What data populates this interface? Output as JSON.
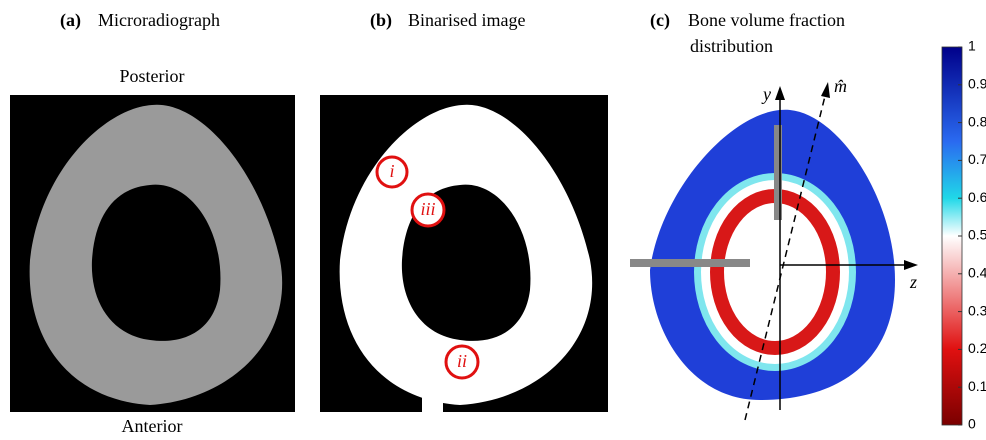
{
  "panels": [
    {
      "tag": "(a)",
      "title": "Microradiograph",
      "top_label": "Posterior",
      "bottom_label": "Anterior"
    },
    {
      "tag": "(b)",
      "title": "Binarised image",
      "markers": [
        "i",
        "iii",
        "ii"
      ]
    },
    {
      "tag": "(c)",
      "title": "Bone volume fraction",
      "title_line2": "distribution",
      "axis_labels": {
        "y": "y",
        "z": "z",
        "m": "m̂"
      },
      "colorbar_ticks": [
        0,
        0.1,
        0.2,
        0.3,
        0.4,
        0.5,
        0.6,
        0.7,
        0.8,
        0.9,
        1
      ]
    }
  ]
}
